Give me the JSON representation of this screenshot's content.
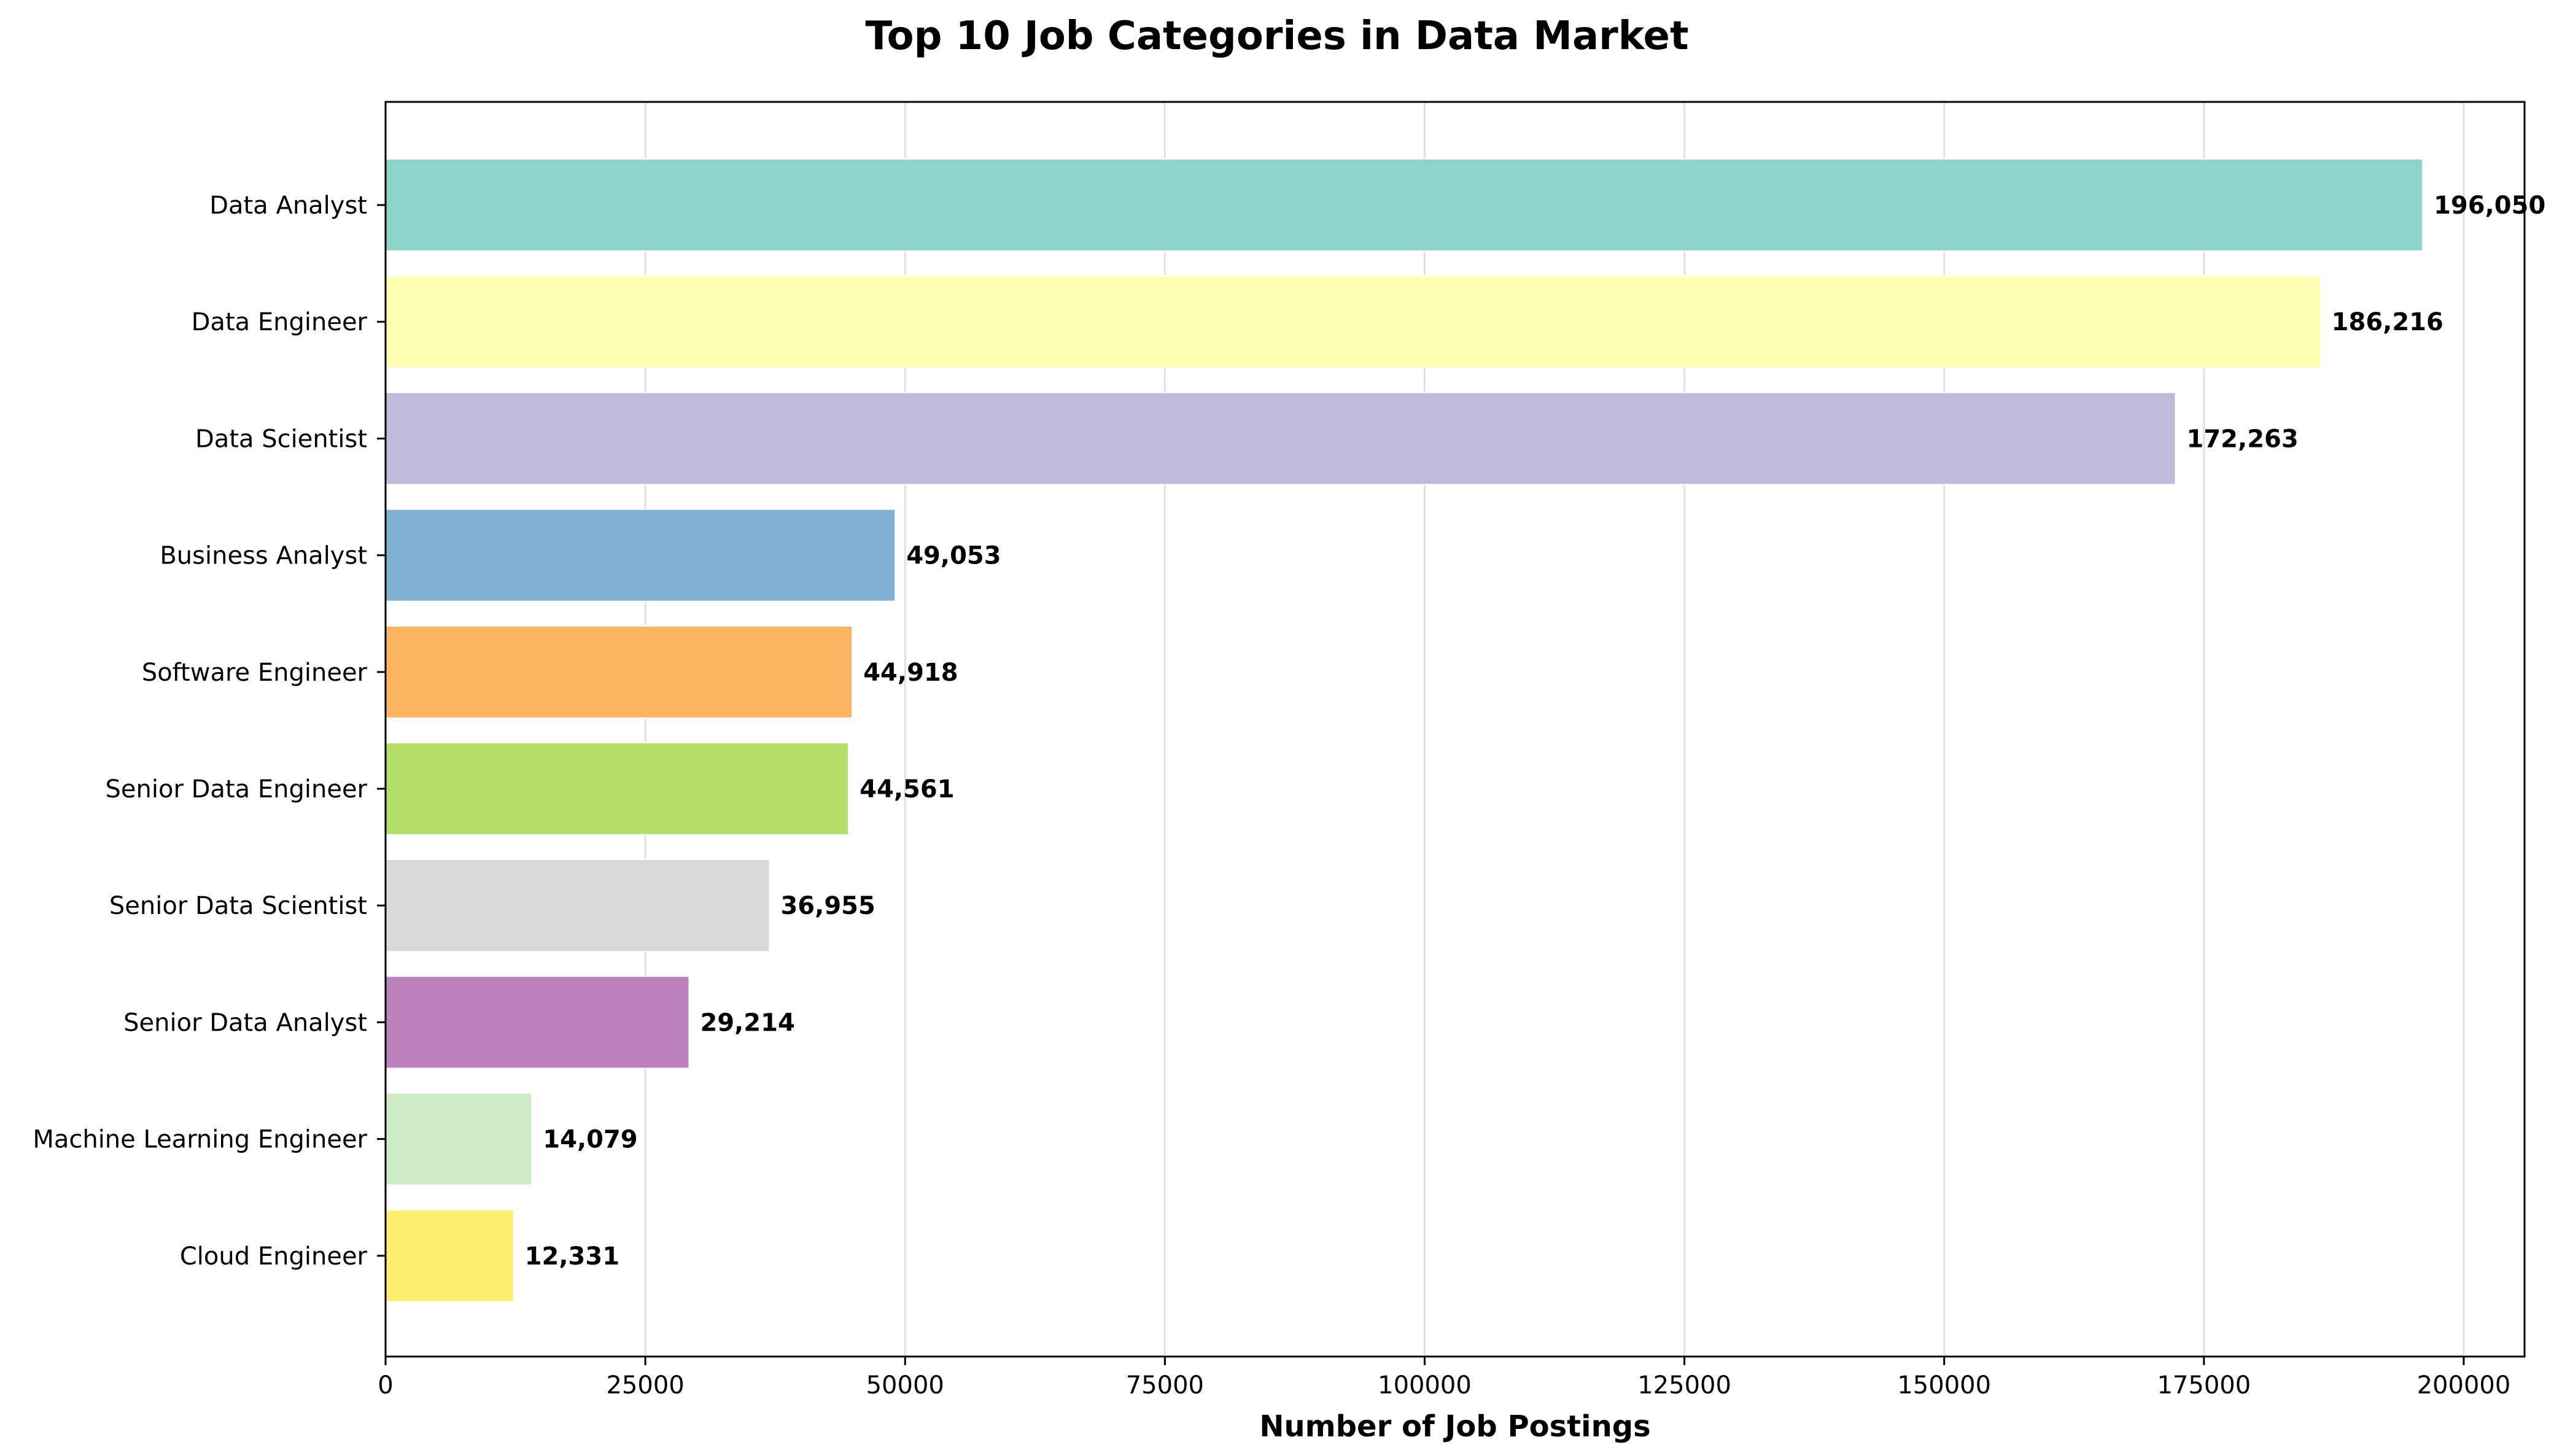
{
  "chart_data": {
    "type": "bar",
    "orientation": "horizontal",
    "title": "Top 10 Job Categories in Data Market",
    "xlabel": "Number of Job Postings",
    "ylabel": "",
    "categories": [
      "Data Analyst",
      "Data Engineer",
      "Data Scientist",
      "Business Analyst",
      "Software Engineer",
      "Senior Data Engineer",
      "Senior Data Scientist",
      "Senior Data Analyst",
      "Machine Learning Engineer",
      "Cloud Engineer"
    ],
    "values": [
      196050,
      186216,
      172263,
      49053,
      44918,
      44561,
      36955,
      29214,
      14079,
      12331
    ],
    "data_labels": [
      "196,050",
      "186,216",
      "172,263",
      "49,053",
      "44,918",
      "44,561",
      "36,955",
      "29,214",
      "14,079",
      "12,331"
    ],
    "colors": [
      "#8dd3c7",
      "#ffffb3",
      "#bebada",
      "#80b1d3",
      "#fdb462",
      "#b3de69",
      "#d9d9d9",
      "#bc80bd",
      "#ccebc5",
      "#ffed6f"
    ],
    "xlim": [
      0,
      205852
    ],
    "xticks": [
      0,
      25000,
      50000,
      75000,
      100000,
      125000,
      150000,
      175000,
      200000
    ],
    "xtick_labels": [
      "0",
      "25000",
      "50000",
      "75000",
      "100000",
      "125000",
      "150000",
      "175000",
      "200000"
    ],
    "grid": "vertical",
    "legend": "none"
  }
}
